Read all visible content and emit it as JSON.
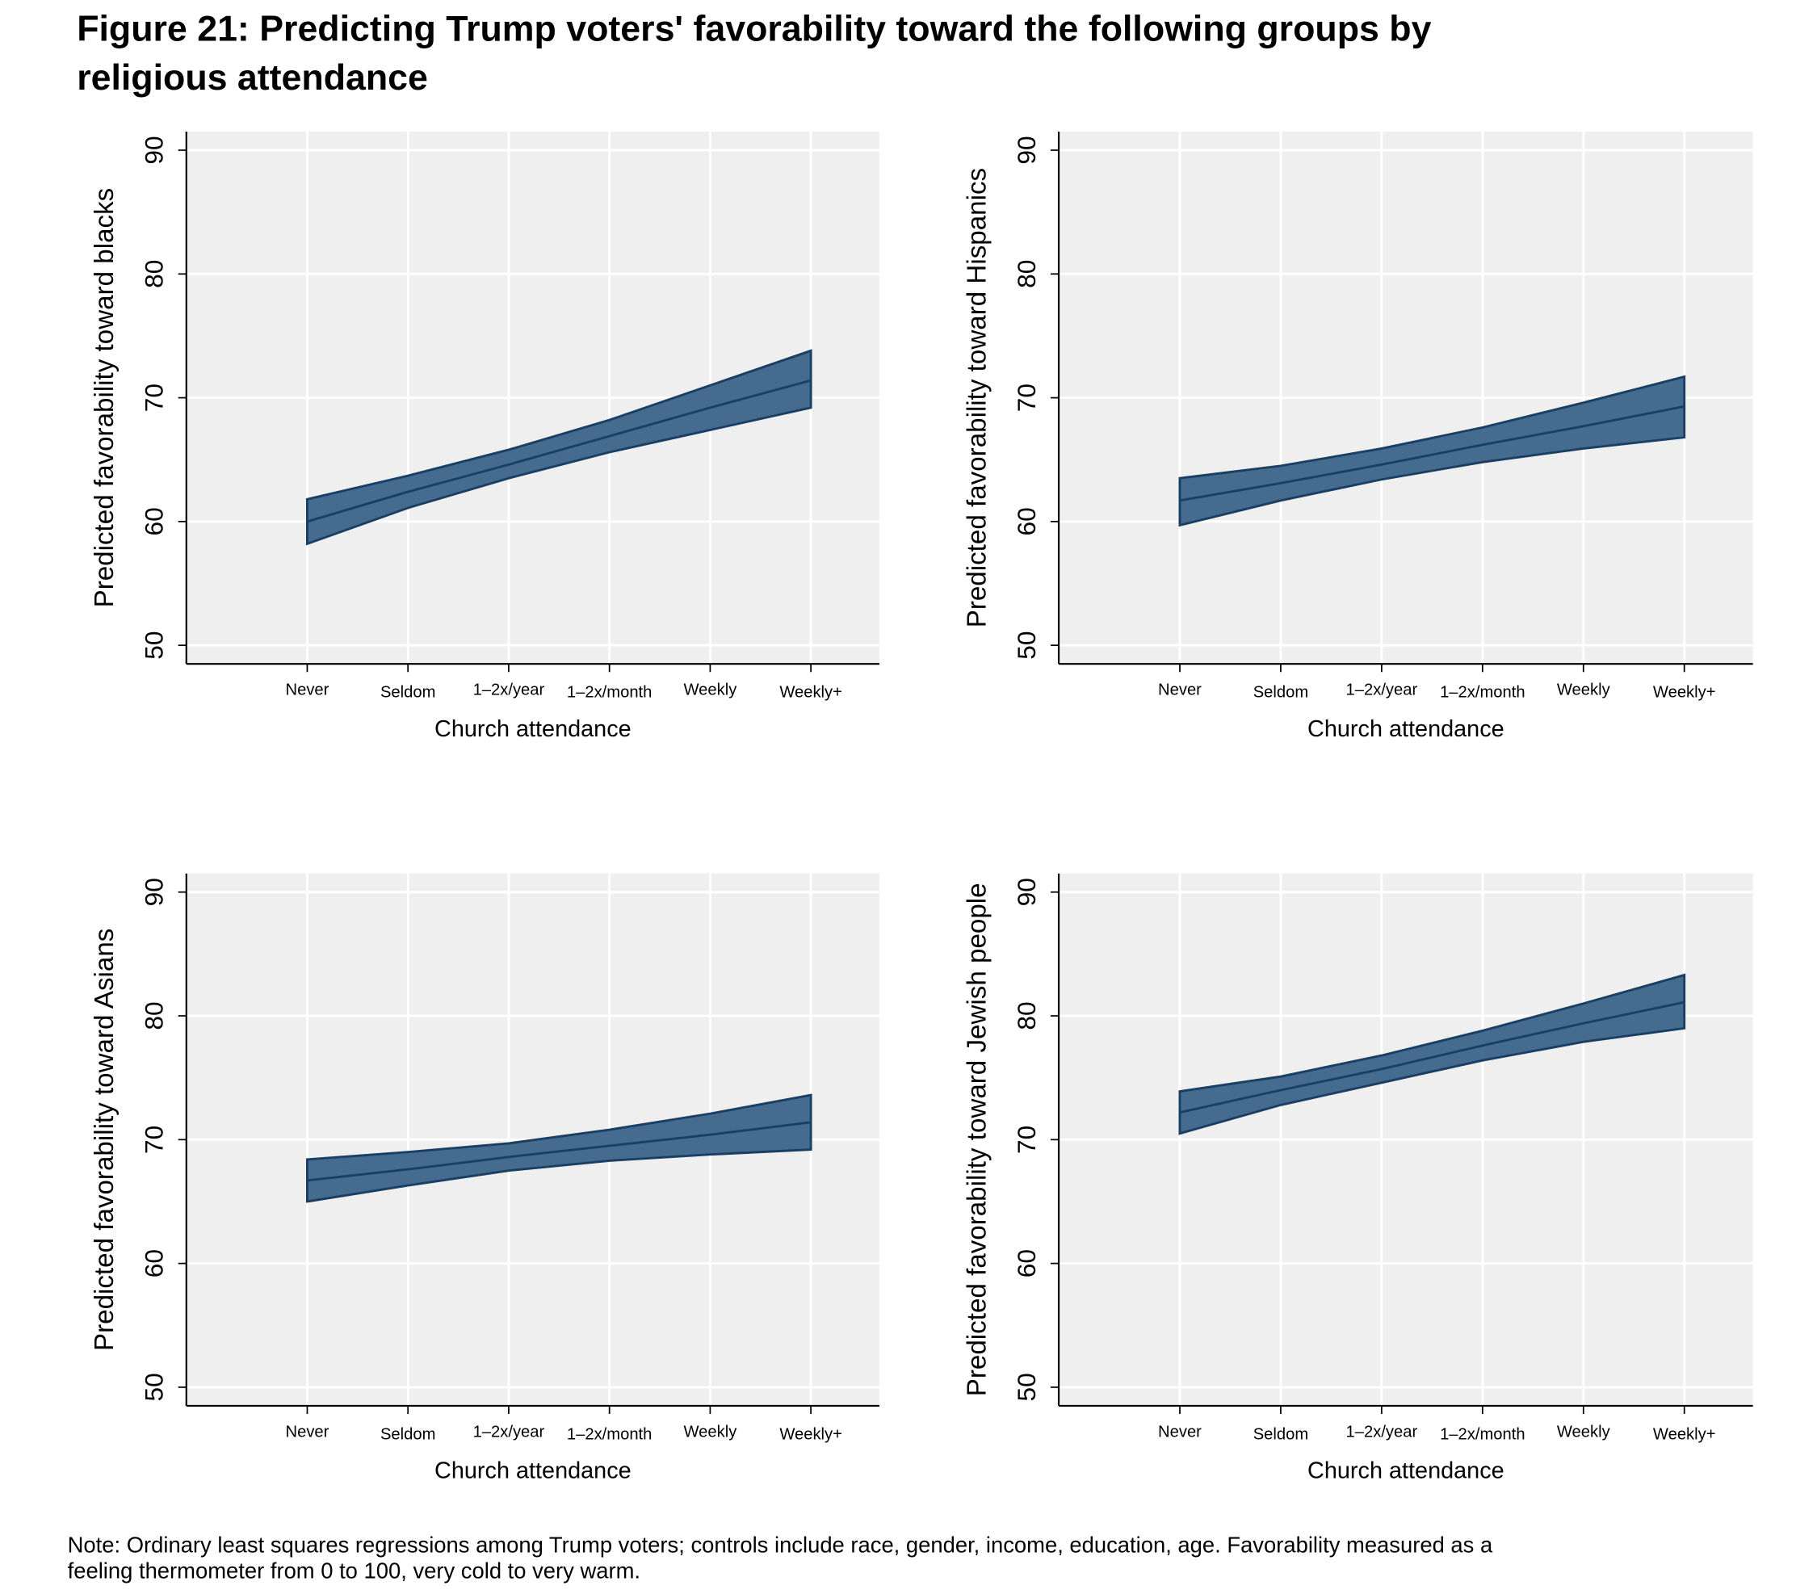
{
  "title": [
    "Figure 21: Predicting Trump voters' favorability toward the following groups by",
    "religious attendance"
  ],
  "note": [
    "Note: Ordinary least squares regressions among Trump voters; controls include race, gender, income, education, age. Favorability measured as a",
    "feeling thermometer from 0 to 100, very cold to very warm."
  ],
  "chart_data": [
    {
      "type": "band",
      "y_label": "Predicted  favorability  toward  blacks",
      "x_label": "Church attendance",
      "categories": [
        "Never",
        "Seldom",
        "1–2x/year",
        "1–2x/month",
        "Weekly",
        "Weekly+"
      ],
      "values": [
        60.0,
        62.4,
        64.6,
        66.9,
        69.2,
        71.4
      ],
      "lower": [
        58.2,
        61.1,
        63.5,
        65.6,
        67.4,
        69.2
      ],
      "upper": [
        61.8,
        63.7,
        65.8,
        68.2,
        71.0,
        73.8
      ],
      "color": "#456b8f",
      "line_color": "#1a3f63",
      "ylim": [
        48.5,
        91.5
      ],
      "yticks": [
        50,
        60,
        70,
        80,
        90
      ],
      "grid": true
    },
    {
      "type": "band",
      "y_label": "Predicted favorability toward Hispanics",
      "x_label": "Church attendance",
      "categories": [
        "Never",
        "Seldom",
        "1–2x/year",
        "1–2x/month",
        "Weekly",
        "Weekly+"
      ],
      "values": [
        61.7,
        63.1,
        64.6,
        66.2,
        67.7,
        69.3
      ],
      "lower": [
        59.7,
        61.7,
        63.4,
        64.8,
        65.9,
        66.8
      ],
      "upper": [
        63.5,
        64.5,
        65.9,
        67.6,
        69.6,
        71.7
      ],
      "color": "#456b8f",
      "line_color": "#1a3f63",
      "ylim": [
        48.5,
        91.5
      ],
      "yticks": [
        50,
        60,
        70,
        80,
        90
      ],
      "grid": true
    },
    {
      "type": "band",
      "y_label": "Predicted  favorability  toward  Asians",
      "x_label": "Church attendance",
      "categories": [
        "Never",
        "Seldom",
        "1–2x/year",
        "1–2x/month",
        "Weekly",
        "Weekly+"
      ],
      "values": [
        66.7,
        67.6,
        68.6,
        69.5,
        70.4,
        71.4
      ],
      "lower": [
        65.0,
        66.3,
        67.5,
        68.3,
        68.8,
        69.2
      ],
      "upper": [
        68.4,
        69.0,
        69.7,
        70.8,
        72.1,
        73.6
      ],
      "color": "#456b8f",
      "line_color": "#1a3f63",
      "ylim": [
        48.5,
        91.5
      ],
      "yticks": [
        50,
        60,
        70,
        80,
        90
      ],
      "grid": true
    },
    {
      "type": "band",
      "y_label": "Predicted favorability toward Jewish people",
      "x_label": "Church attendance",
      "categories": [
        "Never",
        "Seldom",
        "1–2x/year",
        "1–2x/month",
        "Weekly",
        "Weekly+"
      ],
      "values": [
        72.2,
        74.0,
        75.7,
        77.6,
        79.4,
        81.1
      ],
      "lower": [
        70.5,
        72.8,
        74.6,
        76.4,
        77.9,
        79.0
      ],
      "upper": [
        73.9,
        75.1,
        76.8,
        78.8,
        81.0,
        83.3
      ],
      "color": "#456b8f",
      "line_color": "#1a3f63",
      "ylim": [
        48.5,
        91.5
      ],
      "yticks": [
        50,
        60,
        70,
        80,
        90
      ],
      "grid": true
    }
  ]
}
